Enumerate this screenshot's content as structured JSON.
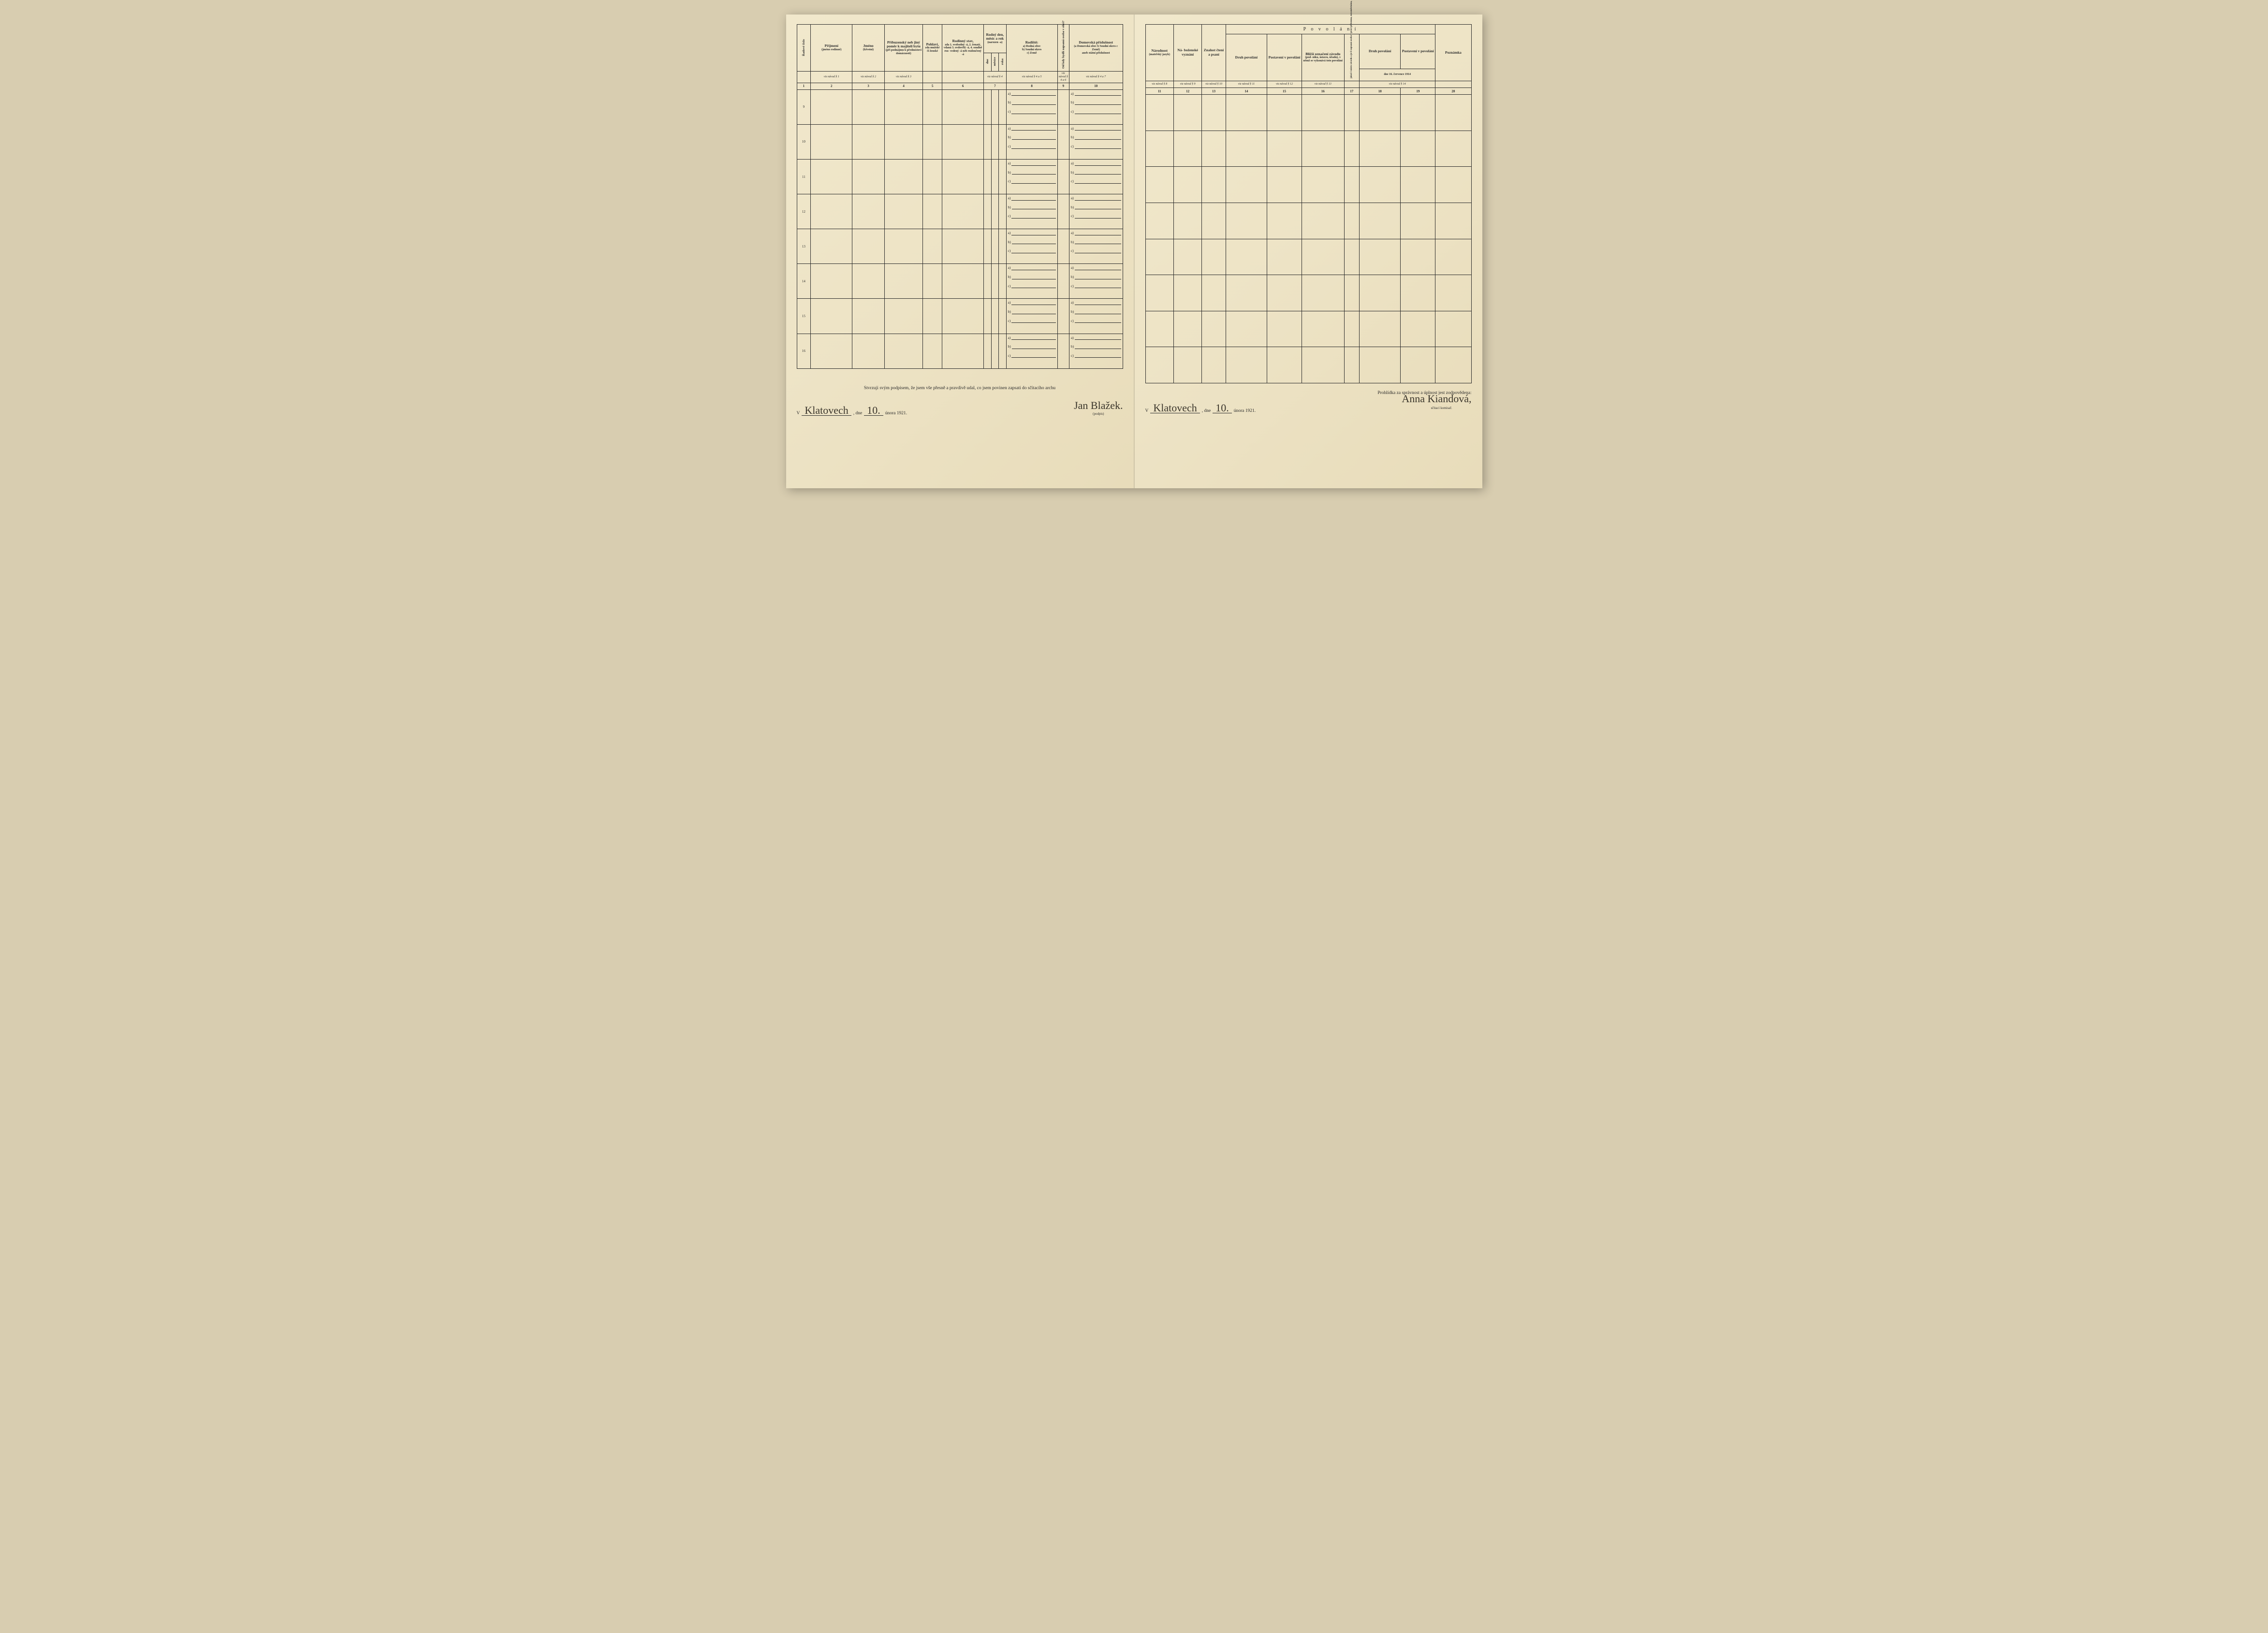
{
  "colors": {
    "paper": "#ede3c5",
    "ink": "#2a2a2a",
    "background": "#d8cdb0",
    "handwriting": "#3b362c"
  },
  "left": {
    "columns": {
      "c1": "Řadové číslo",
      "c2_t": "Příjmení",
      "c2_s": "(jméno rodinné)",
      "c3_t": "Jméno",
      "c3_s": "(křestní)",
      "c4_t": "Příbuzenský neb jiný poměr k majiteli bytu",
      "c4_s": "(při podnájmu k přednostovi domácnosti)",
      "c5_t": "Pohlaví,",
      "c5_s": "zda mužské či ženské",
      "c6_t": "Rodinný stav,",
      "c6_s": "zda 1. svobodný -á, 2. ženatý, vdaná 3. ovdovělý -á, 4. soudně roz- vedený -á neb rozloučený -á",
      "c7_t": "Rodný den, měsíc a rok",
      "c7_s": "(narozen -a)",
      "c7a": "dne",
      "c7b": "měsíce",
      "c7c": "roku",
      "c8_t": "Rodiště:",
      "c8_s": "a) Rodná obec\nb) Soudní okres\nc) Země",
      "c9": "Od kdy bydlí zapsaná osoba v obci?",
      "c10_t": "Domovská příslušnost",
      "c10_s": "(a Domovská obec b Soudní okres c Země)",
      "c10_s2": "aneb státní příslušnost"
    },
    "navod": {
      "n2": "viz návod § 1",
      "n3": "viz návod § 2",
      "n4": "viz návod § 3",
      "n7": "viz návod § 4",
      "n8": "viz návod § 4 a 5",
      "n9": "viz návod § 4 a 6",
      "n10": "viz návod § 4 a 7"
    },
    "colnums": [
      "1",
      "2",
      "3",
      "4",
      "5",
      "6",
      "7",
      "8",
      "9",
      "10"
    ],
    "rows": [
      "9",
      "10",
      "11",
      "12",
      "13",
      "14",
      "15",
      "16"
    ],
    "abc": {
      "a": "a)",
      "b": "b)",
      "c": "c)"
    },
    "footer": {
      "declaration": "Stvrzuji svým podpisem, že jsem vše přesně a pravdivě udal, co jsem povinen zapsati do sčítacího archu",
      "v": "V",
      "place": "Klatovech",
      "dne": ", dne",
      "day": "10.",
      "month_year": "února 1921.",
      "signature": "Jan Blažek.",
      "sig_label": "(podpis)"
    }
  },
  "right": {
    "columns": {
      "c11_t": "Národnost",
      "c11_s": "(mateřský jazyk)",
      "c12_t": "Ná- boženské vyznání",
      "c13_t": "Znalost čtení a psaní",
      "span_title": "P o v o l á n í",
      "c14": "Druh povolání",
      "c15": "Postavení v povolání",
      "c16_t": "Bližší označení závodu",
      "c16_s": "(pod- niku, ústavu, úřadu), v němž se vykonává toto povolání",
      "c17": "jakož i místo závodu a je-li zapsaná osoba v práci přítomna, nezaměstnána, aneb jako učeň",
      "span2": "dne 16. července 1914",
      "c18": "Druh povolání",
      "c19": "Postavení v povolání",
      "c20": "Poznámka"
    },
    "navod": {
      "n11": "viz návod § 8",
      "n12": "viz návod § 9",
      "n13": "viz návod § 10",
      "n14": "viz návod § 11",
      "n15": "viz návod § 12",
      "n16": "viz návod § 13",
      "n1819": "viz návod § 14"
    },
    "colnums": [
      "11",
      "12",
      "13",
      "14",
      "15",
      "16",
      "17",
      "18",
      "19",
      "20"
    ],
    "footer": {
      "declaration": "Prohlídka za správnost a úplnost jest zodpovědena:",
      "v": "V",
      "place": "Klatovech",
      "dne": ", dne",
      "day": "10.",
      "month_year": "února 1921.",
      "signature": "Anna Kiandová,",
      "sig_label": "sčítací komisař."
    }
  }
}
